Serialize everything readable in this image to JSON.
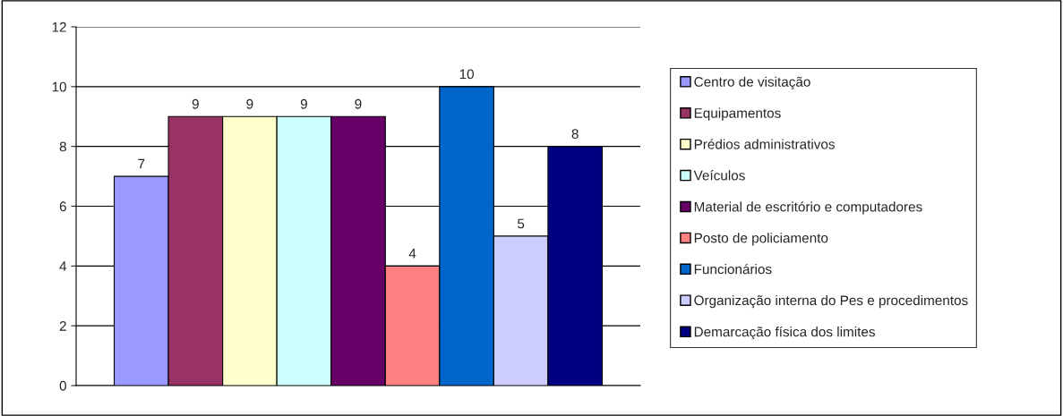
{
  "chart_data": {
    "type": "bar",
    "categories": [
      null
    ],
    "series": [
      {
        "name": "Centro de visitação",
        "color": "#9999ff",
        "values": [
          7
        ]
      },
      {
        "name": "Equipamentos",
        "color": "#993366",
        "values": [
          9
        ]
      },
      {
        "name": "Prédios administrativos",
        "color": "#ffffcc",
        "values": [
          9
        ]
      },
      {
        "name": "Veículos",
        "color": "#ccffff",
        "values": [
          9
        ]
      },
      {
        "name": "Material de escritório e computadores",
        "color": "#660066",
        "values": [
          9
        ]
      },
      {
        "name": "Posto de policiamento",
        "color": "#ff8080",
        "values": [
          4
        ]
      },
      {
        "name": "Funcionários",
        "color": "#0066cc",
        "values": [
          10
        ]
      },
      {
        "name": "Organização interna do Pes e procedimentos",
        "color": "#ccccff",
        "values": [
          5
        ]
      },
      {
        "name": "Demarcação física dos limites",
        "color": "#000080",
        "values": [
          8
        ]
      }
    ],
    "ylim": [
      0,
      12
    ],
    "yticks": [
      0,
      2,
      4,
      6,
      8,
      10,
      12
    ],
    "grid": "y",
    "legend": "right",
    "data_labels": true,
    "tick_labels": "y"
  }
}
